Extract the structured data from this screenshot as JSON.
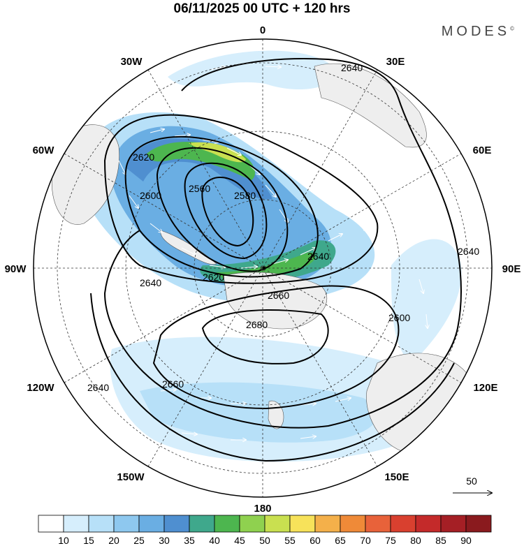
{
  "header": {
    "title": "06/11/2025  00 UTC  + 120 hrs",
    "brand": "MODES",
    "brand_mark": "©"
  },
  "map": {
    "projection": "polar-stereographic-south",
    "longitude_labels": {
      "lon_0": "0",
      "lon_30e": "30E",
      "lon_60e": "60E",
      "lon_90e": "90E",
      "lon_120e": "120E",
      "lon_150e": "150E",
      "lon_180": "180",
      "lon_150w": "150W",
      "lon_120w": "120W",
      "lon_90w": "90W",
      "lon_60w": "60W",
      "lon_30w": "30W"
    },
    "contour_labels": {
      "c2560": "2560",
      "c2580": "2580",
      "c2600_west": "2600",
      "c2620_nw": "2620",
      "c2620_center": "2620",
      "c2640_north": "2640",
      "c2640_east": "2640",
      "c2640_center": "2640",
      "c2640_west": "2640",
      "c2640_sw": "2640",
      "c2660_center": "2660",
      "c2660_south": "2660",
      "c2680": "2680",
      "c2600_east": "2600"
    },
    "reference_vector": {
      "value": "50"
    }
  },
  "colorbar": {
    "ticks": [
      "10",
      "15",
      "20",
      "25",
      "30",
      "35",
      "40",
      "45",
      "50",
      "55",
      "60",
      "65",
      "70",
      "75",
      "80",
      "85",
      "90"
    ],
    "colors": [
      "#ffffff",
      "#d6eefc",
      "#b7e0f8",
      "#8ec8ef",
      "#6aaee3",
      "#4f8fd0",
      "#3fa88c",
      "#4db64f",
      "#8fd14f",
      "#c9e050",
      "#f7e25a",
      "#f4b04a",
      "#ef8a38",
      "#e8623a",
      "#d9402f",
      "#c42a2a",
      "#a51f25",
      "#8a1a1e"
    ]
  }
}
